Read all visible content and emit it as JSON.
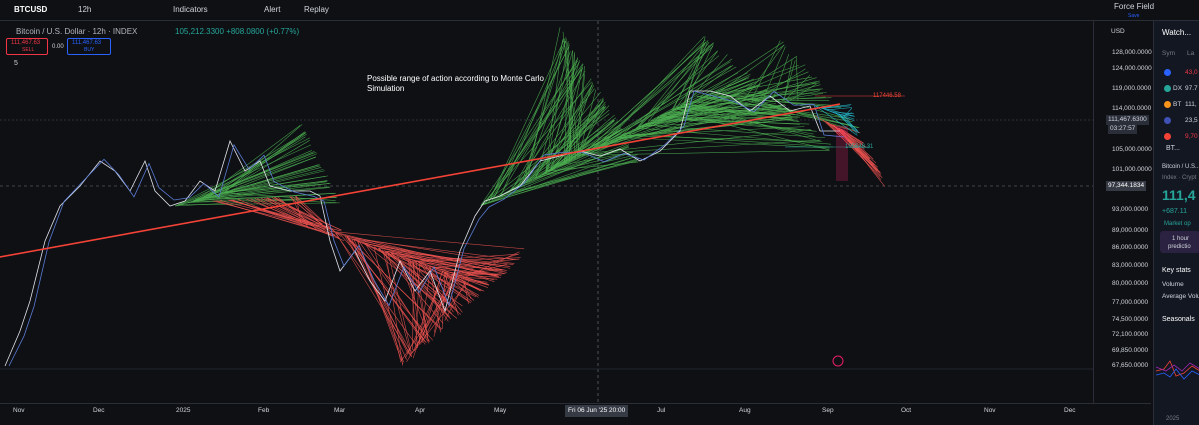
{
  "toolbar": {
    "symbol": "BTCUSD",
    "interval": "12h",
    "indicators": "Indicators",
    "alert": "Alert",
    "replay": "Replay",
    "layout_name": "Force Field",
    "save": "Save"
  },
  "legend": {
    "title": "Bitcoin / U.S. Dollar · 12h · INDEX",
    "ohlc": "105,212.3300 +808.0800 (+0.77%)",
    "sell_price": "111,467.63",
    "sell": "SELL",
    "spread": "0.00",
    "buy_price": "111,467.63",
    "buy": "BUY",
    "indicator_count": "5"
  },
  "annotation": "Possible range of action according to Monte Carlo Simulation",
  "price_axis": {
    "currency": "USD",
    "labels": [
      "128,000.0000",
      "124,000.0000",
      "119,000.0000",
      "114,000.0000",
      "105,000.0000",
      "101,000.0000",
      "93,000.0000",
      "89,000.0000",
      "86,000.0000",
      "83,000.0000",
      "80,000.0000",
      "77,000.0000",
      "74,500.0000",
      "72,100.0000",
      "69,850.0000",
      "67,650.0000"
    ],
    "current_price": "111,467.6300",
    "countdown": "03:27:57",
    "crosshair_price": "97,344.1834"
  },
  "chart_labels": [
    "117446.58",
    "105648.31"
  ],
  "time_axis": [
    "Nov",
    "Dec",
    "2025",
    "Feb",
    "Mar",
    "Apr",
    "May",
    "Jul",
    "Aug",
    "Sep",
    "Oct",
    "Nov",
    "Dec"
  ],
  "crosshair_time": "Fri 06 Jun '25  20:00",
  "watchlist": {
    "title": "Watch...",
    "col_symbol": "Sym",
    "col_last": "La",
    "rows": [
      "43,0",
      "97.7",
      "111,",
      "23,5",
      "9,70"
    ],
    "row_symbols": [
      "",
      "DX",
      "BT",
      "",
      ""
    ],
    "selected": "BT...",
    "name": "Bitcoin / U.S...",
    "type": "Index · Crypt",
    "price": "111,4",
    "change": "+687.11",
    "status": "Market op",
    "idea_line1": "1 hour",
    "idea_line2": "predictio",
    "key_stats": "Key stats",
    "volume": "Volume",
    "avg_volume": "Average Volu",
    "seasonals": "Seasonals",
    "season_year": "2025"
  }
}
